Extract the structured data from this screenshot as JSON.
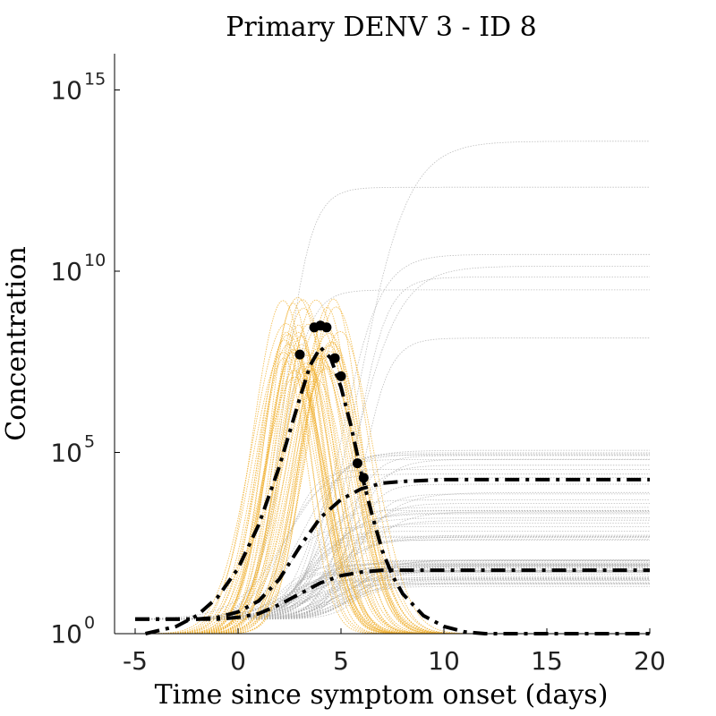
{
  "chart_data": {
    "type": "line",
    "title": "Primary DENV 3 - ID 8",
    "xlabel": "Time since symptom onset (days)",
    "ylabel": "Concentration",
    "xlim": [
      -6,
      20
    ],
    "ylim_log10": [
      0,
      16
    ],
    "y_scale": "log",
    "grid": false,
    "legend": "none",
    "x_ticks": [
      {
        "value": -5,
        "label": "-5"
      },
      {
        "value": 0,
        "label": "0"
      },
      {
        "value": 5,
        "label": "5"
      },
      {
        "value": 10,
        "label": "10"
      },
      {
        "value": 15,
        "label": "15"
      },
      {
        "value": 20,
        "label": "20"
      }
    ],
    "y_ticks": [
      {
        "value": 1,
        "base": "10",
        "exponent": "0"
      },
      {
        "value": 100000,
        "base": "10",
        "exponent": "5"
      },
      {
        "value": 10000000000,
        "base": "10",
        "exponent": "10"
      },
      {
        "value": 1000000000000000,
        "base": "10",
        "exponent": "15"
      }
    ],
    "colors": {
      "virus_samples": "#f0b030",
      "antibody_samples": "#a8a8a8",
      "fit_line": "#000000",
      "observations": "#000000"
    },
    "series": [
      {
        "role": "virus-fit",
        "style": "dash-dot",
        "x": [
          -4.5,
          -3,
          -2,
          -1,
          0,
          1,
          2,
          3,
          3.5,
          4,
          4.5,
          5,
          5.5,
          6,
          6.5,
          7,
          7.5,
          8,
          9,
          10,
          11,
          12,
          13,
          15,
          20
        ],
        "y_log10": [
          0,
          0.2,
          0.5,
          1,
          1.8,
          3,
          4.6,
          6.5,
          7.4,
          7.9,
          7.6,
          6.8,
          5.7,
          4.4,
          3.3,
          2.3,
          1.6,
          1.1,
          0.5,
          0.2,
          0.05,
          0,
          0,
          0,
          0
        ]
      },
      {
        "role": "antibody-fit-upper",
        "style": "dash-dot",
        "x": [
          -5,
          -3,
          -2,
          -1,
          0,
          1,
          2,
          3,
          4,
          5,
          6,
          7,
          8,
          10,
          12,
          15,
          20
        ],
        "y_log10": [
          0.4,
          0.4,
          0.4,
          0.45,
          0.6,
          0.9,
          1.5,
          2.4,
          3.2,
          3.7,
          4.0,
          4.15,
          4.2,
          4.25,
          4.25,
          4.25,
          4.25
        ]
      },
      {
        "role": "antibody-fit-lower",
        "style": "dash-dot",
        "x": [
          -5,
          -3,
          -2,
          -1,
          0,
          1,
          2,
          3,
          4,
          5,
          6,
          7,
          8,
          10,
          12,
          15,
          20
        ],
        "y_log10": [
          0.4,
          0.4,
          0.4,
          0.4,
          0.45,
          0.55,
          0.8,
          1.1,
          1.4,
          1.6,
          1.7,
          1.75,
          1.75,
          1.75,
          1.75,
          1.75,
          1.75
        ]
      }
    ],
    "observations": {
      "x": [
        3.0,
        3.7,
        4.0,
        4.3,
        4.7,
        5.0,
        5.8,
        6.1
      ],
      "y_log10": [
        7.7,
        8.45,
        8.5,
        8.45,
        7.6,
        7.1,
        4.7,
        4.3
      ]
    },
    "sample_bands": [
      {
        "role": "virus-posterior-samples",
        "color": "#f0b030",
        "count": 45,
        "peak_x_range": [
          2.0,
          5.0
        ],
        "peak_y_log10_range": [
          7.0,
          9.3
        ],
        "width_days_range": [
          1.6,
          2.4
        ],
        "floor_y_log10": 0
      },
      {
        "role": "antibody-posterior-samples",
        "color": "#a8a8a8",
        "count": 80,
        "midpoint_x_range": [
          2.0,
          6.0
        ],
        "plateau_y_log10_range": [
          1.3,
          14.0
        ],
        "start_y_log10": 0.4
      }
    ]
  }
}
